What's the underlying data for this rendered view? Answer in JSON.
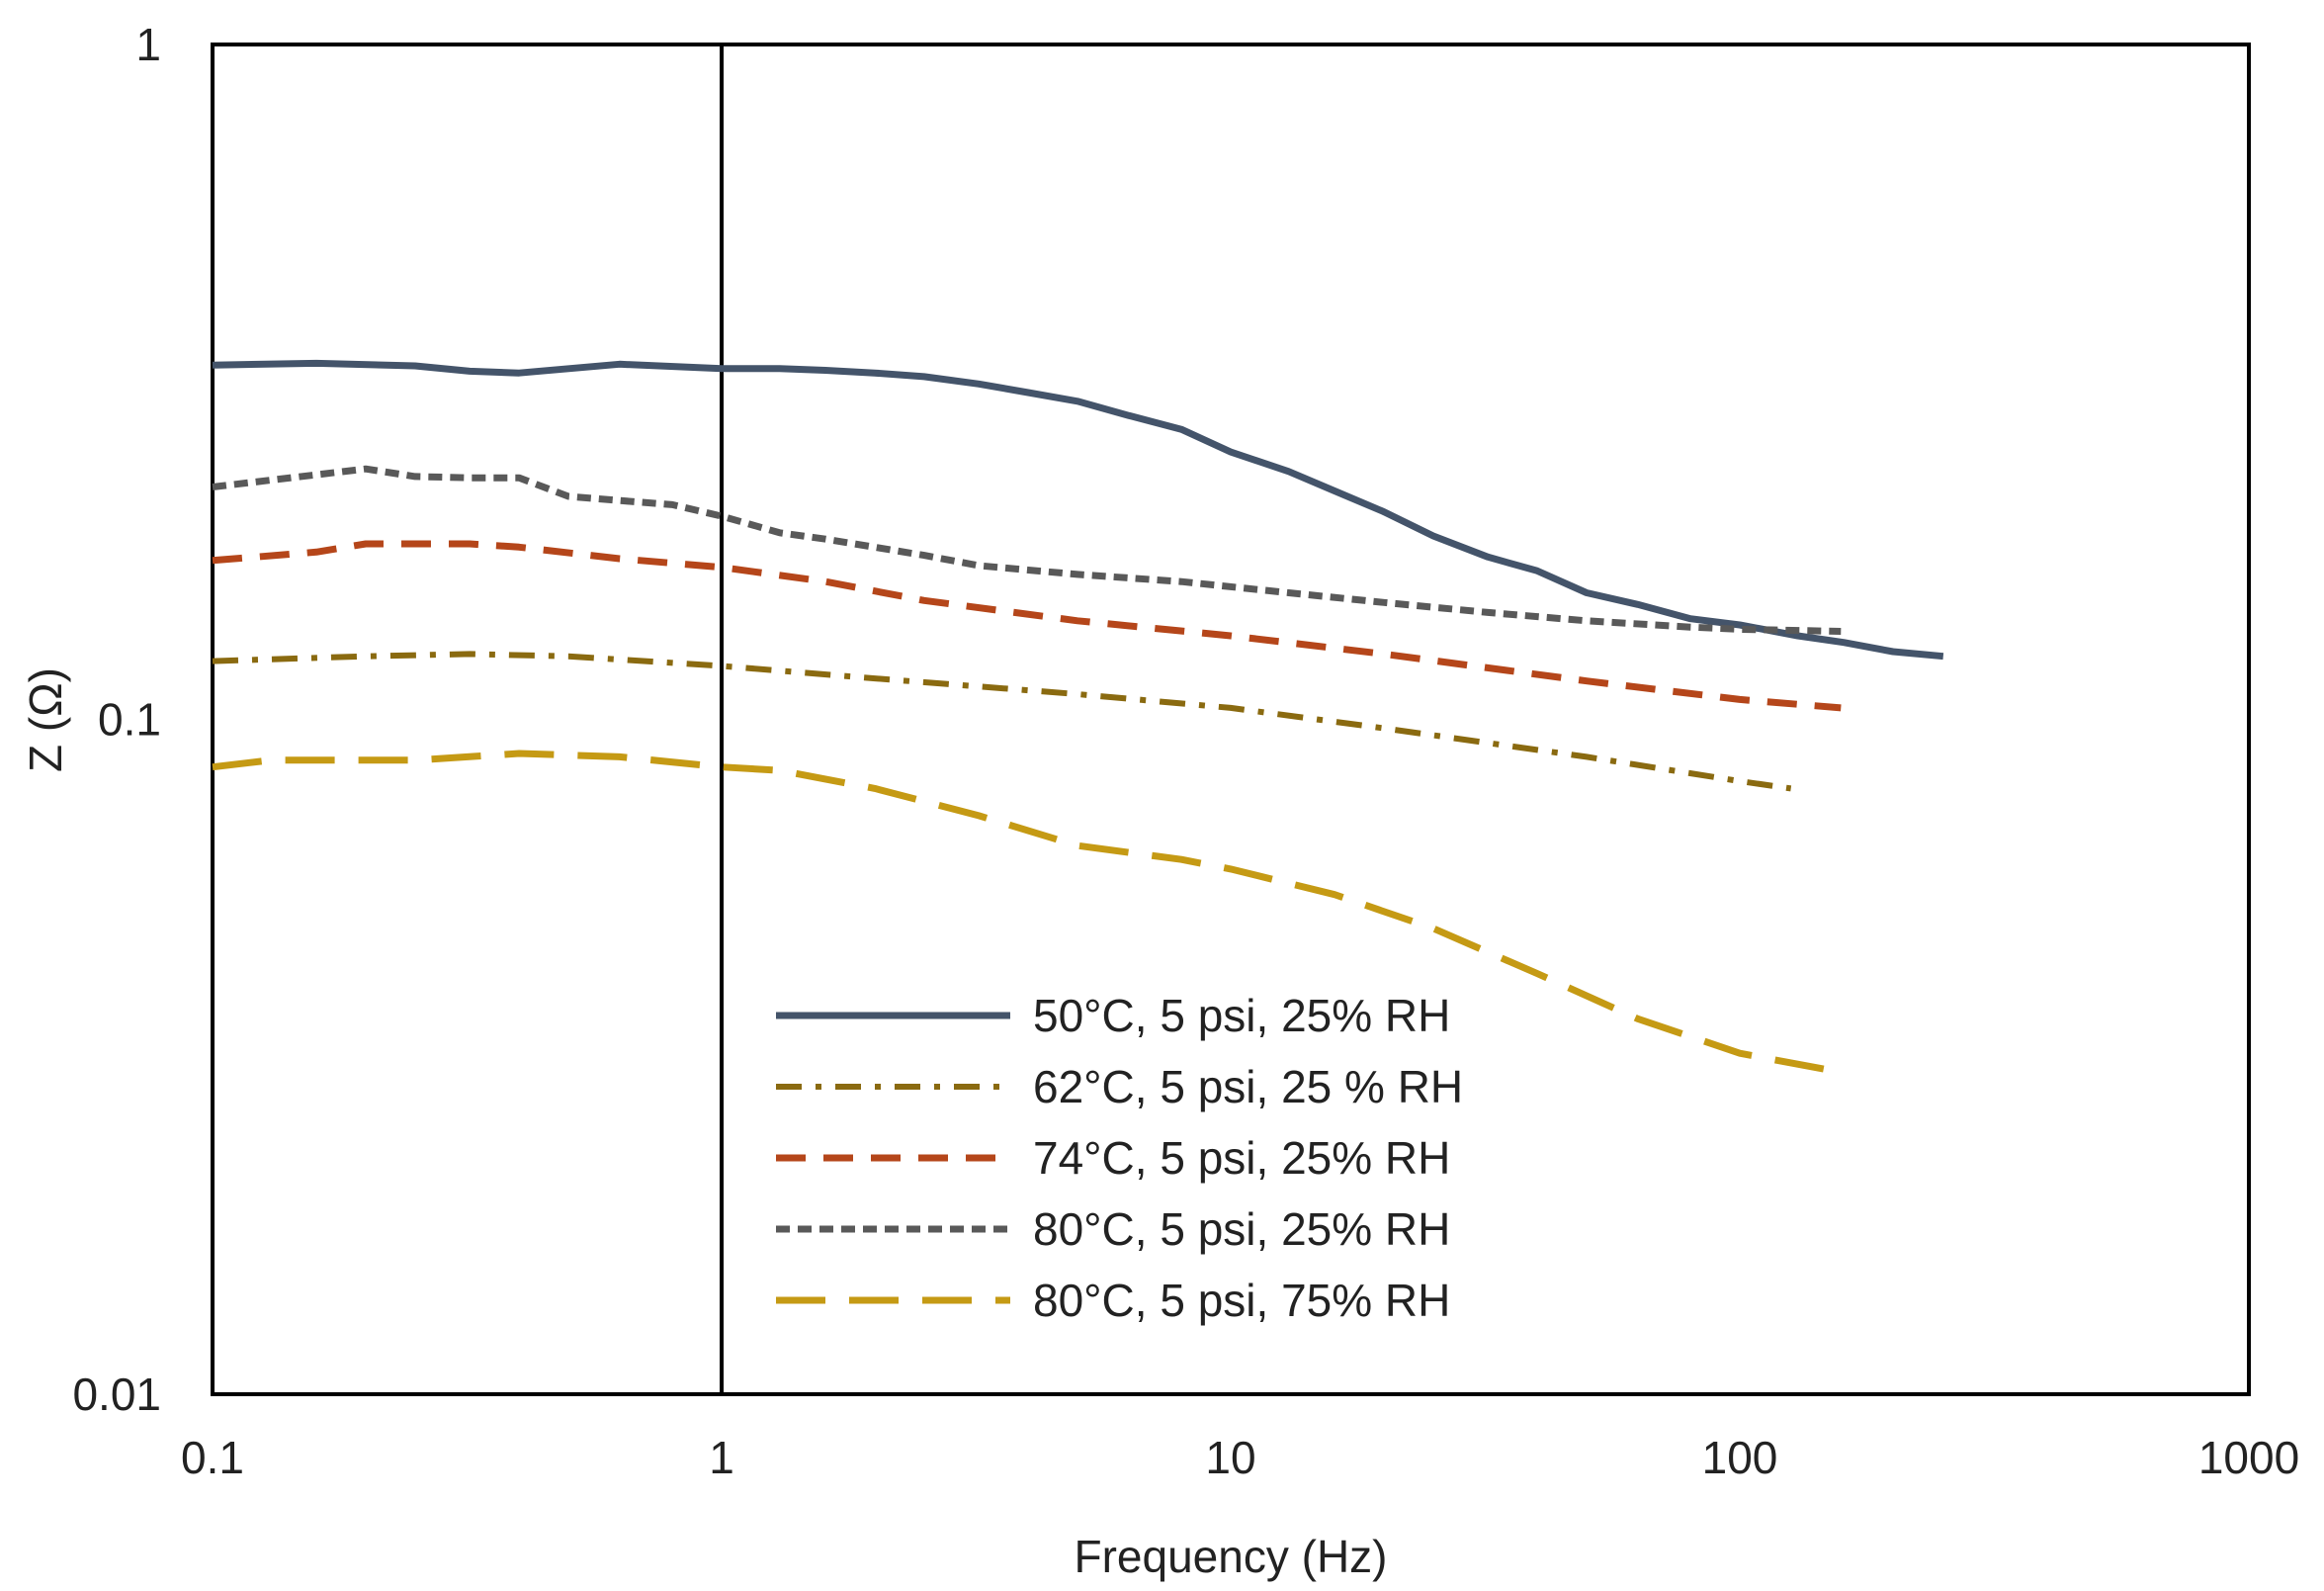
{
  "chart_data": {
    "type": "line",
    "title": "",
    "xlabel": "Frequency (Hz)",
    "ylabel": "Z (Ω)",
    "x_scale": "log",
    "y_scale": "log",
    "xlim": [
      0.1,
      1000
    ],
    "ylim": [
      0.01,
      1
    ],
    "x_ticks": [
      {
        "value": 0.1,
        "label": "0.1"
      },
      {
        "value": 1,
        "label": "1"
      },
      {
        "value": 10,
        "label": "10"
      },
      {
        "value": 100,
        "label": "100"
      },
      {
        "value": 1000,
        "label": "1000"
      }
    ],
    "y_ticks": [
      {
        "value": 0.01,
        "label": "0.01"
      },
      {
        "value": 0.1,
        "label": "0.1"
      },
      {
        "value": 1,
        "label": "1"
      }
    ],
    "reference_line_x": 1,
    "grid": false,
    "legend_position": "lower-center",
    "series": [
      {
        "name": "50°C, 5 psi, 25% RH",
        "color": "#44546a",
        "style": "solid",
        "x": [
          0.1,
          0.16,
          0.25,
          0.32,
          0.4,
          0.63,
          1,
          1.3,
          1.6,
          2,
          2.5,
          3.2,
          4,
          5,
          6.3,
          8,
          10,
          13,
          16,
          20,
          25,
          32,
          40,
          50,
          63,
          80,
          100,
          130,
          160,
          200,
          251
        ],
        "y": [
          0.335,
          0.337,
          0.334,
          0.328,
          0.326,
          0.336,
          0.331,
          0.331,
          0.329,
          0.326,
          0.322,
          0.314,
          0.305,
          0.296,
          0.282,
          0.269,
          0.249,
          0.233,
          0.218,
          0.203,
          0.187,
          0.174,
          0.166,
          0.154,
          0.148,
          0.141,
          0.138,
          0.133,
          0.13,
          0.126,
          0.124
        ]
      },
      {
        "name": "62°C, 5 psi, 25 % RH",
        "color": "#8a6a10",
        "style": "dash-dot",
        "x": [
          0.1,
          0.2,
          0.32,
          0.5,
          1,
          2,
          5,
          10,
          20,
          50,
          100,
          126
        ],
        "y": [
          0.122,
          0.124,
          0.125,
          0.124,
          0.12,
          0.115,
          0.109,
          0.104,
          0.097,
          0.088,
          0.081,
          0.079
        ]
      },
      {
        "name": "74°C, 5 psi, 25% RH",
        "color": "#b5461a",
        "style": "dash",
        "x": [
          0.1,
          0.16,
          0.2,
          0.32,
          0.4,
          0.63,
          1,
          1.6,
          2.5,
          5,
          10,
          20,
          50,
          100,
          158
        ],
        "y": [
          0.172,
          0.177,
          0.182,
          0.182,
          0.18,
          0.173,
          0.168,
          0.16,
          0.15,
          0.14,
          0.133,
          0.125,
          0.114,
          0.107,
          0.104
        ]
      },
      {
        "name": "80°C, 5 psi, 25% RH",
        "color": "#595959",
        "style": "dot",
        "x": [
          0.1,
          0.2,
          0.25,
          0.32,
          0.4,
          0.5,
          0.63,
          0.8,
          1,
          1.3,
          1.6,
          2.5,
          3.2,
          5,
          8,
          13,
          20,
          32,
          50,
          80,
          100,
          158
        ],
        "y": [
          0.221,
          0.235,
          0.229,
          0.228,
          0.228,
          0.214,
          0.211,
          0.208,
          0.2,
          0.189,
          0.185,
          0.175,
          0.169,
          0.164,
          0.16,
          0.154,
          0.149,
          0.144,
          0.14,
          0.137,
          0.136,
          0.135
        ]
      },
      {
        "name": "80°C, 5 psi, 75% RH",
        "color": "#c59a14",
        "style": "long-dash",
        "x": [
          0.1,
          0.13,
          0.2,
          0.25,
          0.4,
          0.63,
          1,
          1.3,
          2,
          3.2,
          5,
          8,
          10,
          16,
          25,
          40,
          63,
          100,
          158
        ],
        "y": [
          0.085,
          0.087,
          0.087,
          0.087,
          0.089,
          0.088,
          0.085,
          0.084,
          0.079,
          0.072,
          0.065,
          0.062,
          0.06,
          0.055,
          0.049,
          0.042,
          0.036,
          0.032,
          0.03
        ]
      }
    ]
  }
}
